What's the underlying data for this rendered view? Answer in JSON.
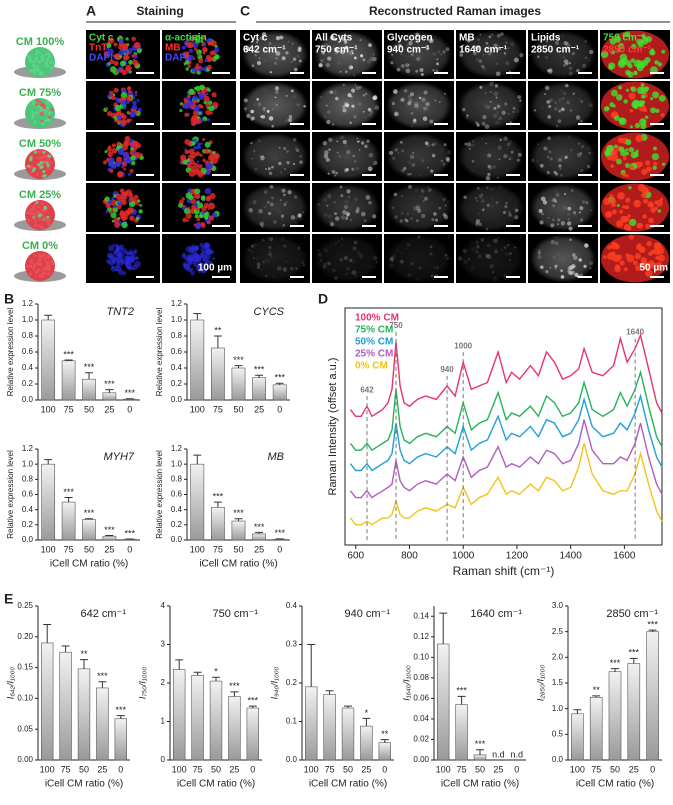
{
  "figure": {
    "panel_a": {
      "label": "A",
      "title": "Staining",
      "channels": [
        [
          "Cyt c",
          "TnT",
          "DAPI"
        ],
        [
          "α-actinin",
          "MB",
          "DAPI"
        ]
      ],
      "channel_colors": [
        "#3cdc3c",
        "#ff3030",
        "#4a4aff"
      ],
      "scale_bar": "100 µm"
    },
    "panel_c": {
      "label": "C",
      "title": "Reconstructed Raman images",
      "columns": [
        {
          "name": "Cyt c",
          "band": "642 cm⁻¹"
        },
        {
          "name": "All Cyts",
          "band": "750 cm⁻¹"
        },
        {
          "name": "Glycogen",
          "band": "940 cm⁻¹"
        },
        {
          "name": "MB",
          "band": "1640 cm⁻¹"
        },
        {
          "name": "Lipids",
          "band": "2850 cm⁻¹"
        },
        {
          "name": "750 cm⁻¹",
          "band": "2850 cm⁻¹"
        }
      ],
      "scale_bar": "50 µm"
    },
    "rows": [
      "CM 100%",
      "CM 75%",
      "CM 50%",
      "CM 25%",
      "CM 0%"
    ]
  },
  "chart_data": [
    {
      "type": "bar",
      "panel": "B",
      "title": "TNT2",
      "ylabel": "Relative expression level",
      "categories": [
        "100",
        "75",
        "50",
        "25",
        "0"
      ],
      "values": [
        1.0,
        0.49,
        0.26,
        0.09,
        0.01
      ],
      "errors": [
        0.06,
        0.01,
        0.08,
        0.04,
        0.005
      ],
      "significance": [
        null,
        "***",
        "***",
        "***",
        "***"
      ],
      "color": "#9a9a9a",
      "ylim": [
        0,
        1.2
      ],
      "yticks": [
        {
          "value": 0,
          "label": "0.0"
        },
        {
          "value": 0.2,
          "label": "0.2"
        },
        {
          "value": 0.4,
          "label": "0.4"
        },
        {
          "value": 0.6,
          "label": "0.6"
        },
        {
          "value": 0.8,
          "label": "0.8"
        },
        {
          "value": 1.0,
          "label": "1.0"
        },
        {
          "value": 1.2,
          "label": "1.2"
        }
      ]
    },
    {
      "type": "bar",
      "title": "CYCS",
      "ylabel": "Relative expression level",
      "categories": [
        "100",
        "75",
        "50",
        "25",
        "0"
      ],
      "values": [
        1.0,
        0.65,
        0.4,
        0.28,
        0.19
      ],
      "errors": [
        0.08,
        0.15,
        0.03,
        0.03,
        0.02
      ],
      "significance": [
        null,
        "**",
        "***",
        "***",
        "***"
      ],
      "color": "#9a9a9a",
      "ylim": [
        0,
        1.2
      ],
      "yticks": [
        {
          "value": 0,
          "label": "0.0"
        },
        {
          "value": 0.2,
          "label": "0.2"
        },
        {
          "value": 0.4,
          "label": "0.4"
        },
        {
          "value": 0.6,
          "label": "0.6"
        },
        {
          "value": 0.8,
          "label": "0.8"
        },
        {
          "value": 1.0,
          "label": "1.0"
        },
        {
          "value": 1.2,
          "label": "1.2"
        }
      ]
    },
    {
      "type": "bar",
      "title": "MYH7",
      "ylabel": "Relative expression level",
      "xlabel": "iCell CM ratio (%)",
      "categories": [
        "100",
        "75",
        "50",
        "25",
        "0"
      ],
      "values": [
        1.0,
        0.5,
        0.27,
        0.05,
        0.01
      ],
      "errors": [
        0.06,
        0.06,
        0.01,
        0.01,
        0.003
      ],
      "significance": [
        null,
        "***",
        "***",
        "***",
        "***"
      ],
      "color": "#9a9a9a",
      "ylim": [
        0,
        1.2
      ],
      "yticks": [
        {
          "value": 0,
          "label": "0.0"
        },
        {
          "value": 0.2,
          "label": "0.2"
        },
        {
          "value": 0.4,
          "label": "0.4"
        },
        {
          "value": 0.6,
          "label": "0.6"
        },
        {
          "value": 0.8,
          "label": "0.8"
        },
        {
          "value": 1.0,
          "label": "1.0"
        },
        {
          "value": 1.2,
          "label": "1.2"
        }
      ]
    },
    {
      "type": "bar",
      "title": "MB",
      "ylabel": "Relative expression level",
      "xlabel": "iCell CM ratio (%)",
      "categories": [
        "100",
        "75",
        "50",
        "25",
        "0"
      ],
      "values": [
        1.0,
        0.43,
        0.25,
        0.08,
        0.01
      ],
      "errors": [
        0.12,
        0.07,
        0.03,
        0.02,
        0.005
      ],
      "significance": [
        null,
        "***",
        "***",
        "***",
        "***"
      ],
      "color": "#9a9a9a",
      "ylim": [
        0,
        1.2
      ],
      "yticks": [
        {
          "value": 0,
          "label": "0.0"
        },
        {
          "value": 0.2,
          "label": "0.2"
        },
        {
          "value": 0.4,
          "label": "0.4"
        },
        {
          "value": 0.6,
          "label": "0.6"
        },
        {
          "value": 0.8,
          "label": "0.8"
        },
        {
          "value": 1.0,
          "label": "1.0"
        },
        {
          "value": 1.2,
          "label": "1.2"
        }
      ]
    },
    {
      "type": "line",
      "panel": "D",
      "ylabel": "Raman Intensity (offset a.u.)",
      "xlabel": "Raman shift (cm⁻¹)",
      "xlim": [
        560,
        1740
      ],
      "xticks": [
        600,
        800,
        1000,
        1200,
        1400,
        1600
      ],
      "ylim": [
        1.2,
        8.2
      ],
      "annotations": [
        642,
        750,
        940,
        1000,
        1640
      ],
      "x": [
        580,
        600,
        620,
        642,
        660,
        680,
        700,
        720,
        735,
        750,
        765,
        780,
        800,
        830,
        860,
        900,
        940,
        970,
        1000,
        1030,
        1060,
        1090,
        1130,
        1160,
        1180,
        1210,
        1250,
        1280,
        1310,
        1340,
        1370,
        1400,
        1430,
        1450,
        1480,
        1520,
        1560,
        1585,
        1610,
        1640,
        1660,
        1690,
        1720,
        1740
      ],
      "series": [
        {
          "name": "100% CM",
          "color": "#e8336b",
          "values": [
            5.2,
            5.0,
            5.0,
            5.3,
            5.0,
            5.1,
            5.2,
            5.4,
            5.8,
            7.2,
            5.9,
            5.4,
            5.3,
            5.5,
            5.6,
            5.5,
            5.9,
            5.6,
            6.6,
            5.8,
            5.9,
            6.0,
            6.9,
            6.0,
            6.3,
            6.1,
            6.5,
            6.2,
            6.9,
            6.6,
            6.1,
            6.2,
            6.4,
            7.0,
            6.3,
            6.2,
            6.5,
            7.3,
            6.6,
            7.0,
            7.4,
            6.4,
            5.4,
            5.1
          ]
        },
        {
          "name": "75% CM",
          "color": "#23b35a",
          "values": [
            4.2,
            4.0,
            4.0,
            4.2,
            4.0,
            4.1,
            4.2,
            4.3,
            4.6,
            5.8,
            4.7,
            4.3,
            4.2,
            4.4,
            4.5,
            4.4,
            4.7,
            4.5,
            5.4,
            4.6,
            4.8,
            4.9,
            5.7,
            4.9,
            5.1,
            5.0,
            5.3,
            5.0,
            5.6,
            5.4,
            5.0,
            5.1,
            5.4,
            6.0,
            5.2,
            5.0,
            5.2,
            5.7,
            5.3,
            5.8,
            6.3,
            5.3,
            4.4,
            4.1
          ]
        },
        {
          "name": "50% CM",
          "color": "#1e9fd8",
          "values": [
            3.6,
            3.4,
            3.4,
            3.6,
            3.4,
            3.5,
            3.6,
            3.7,
            3.9,
            4.8,
            4.0,
            3.7,
            3.6,
            3.8,
            3.9,
            3.8,
            4.1,
            3.9,
            4.7,
            4.0,
            4.2,
            4.3,
            5.0,
            4.3,
            4.5,
            4.4,
            4.7,
            4.4,
            4.9,
            4.8,
            4.4,
            4.5,
            4.9,
            5.5,
            4.7,
            4.4,
            4.5,
            4.8,
            4.6,
            5.1,
            5.6,
            4.6,
            3.8,
            3.5
          ]
        },
        {
          "name": "25% CM",
          "color": "#b05cc0",
          "values": [
            2.8,
            2.6,
            2.6,
            2.8,
            2.6,
            2.7,
            2.8,
            2.9,
            3.0,
            3.7,
            3.1,
            2.9,
            2.8,
            3.0,
            3.1,
            3.0,
            3.3,
            3.1,
            3.8,
            3.2,
            3.4,
            3.5,
            4.1,
            3.5,
            3.6,
            3.5,
            3.8,
            3.6,
            4.0,
            3.9,
            3.6,
            3.7,
            4.2,
            4.9,
            4.0,
            3.6,
            3.6,
            3.8,
            3.7,
            4.2,
            4.8,
            3.8,
            3.0,
            2.7
          ]
        },
        {
          "name": "0% CM",
          "color": "#f0c419",
          "values": [
            2.0,
            1.8,
            1.8,
            1.9,
            1.8,
            1.9,
            2.0,
            2.0,
            2.1,
            2.5,
            2.1,
            2.0,
            2.0,
            2.2,
            2.3,
            2.2,
            2.4,
            2.3,
            2.9,
            2.4,
            2.6,
            2.7,
            3.2,
            2.7,
            2.8,
            2.7,
            3.0,
            2.8,
            3.2,
            3.1,
            2.8,
            2.9,
            3.5,
            4.2,
            3.3,
            2.8,
            2.7,
            2.8,
            2.8,
            3.3,
            3.9,
            3.0,
            2.2,
            1.9
          ]
        }
      ]
    },
    {
      "type": "bar",
      "panel": "E",
      "title": "642 cm⁻¹",
      "ylabel": "I₆₄₂/I₁₀₀₀",
      "xlabel": "iCell CM ratio (%)",
      "categories": [
        "100",
        "75",
        "50",
        "25",
        "0"
      ],
      "values": [
        0.19,
        0.175,
        0.148,
        0.117,
        0.067
      ],
      "errors": [
        0.03,
        0.01,
        0.015,
        0.01,
        0.005
      ],
      "significance": [
        null,
        null,
        "**",
        "***",
        "***"
      ],
      "color": "#9a9a9a",
      "ylim": [
        0,
        0.25
      ],
      "yticks": [
        {
          "value": 0,
          "label": "0.00"
        },
        {
          "value": 0.05,
          "label": "0.05"
        },
        {
          "value": 0.1,
          "label": "0.10"
        },
        {
          "value": 0.15,
          "label": "0.15"
        },
        {
          "value": 0.2,
          "label": "0.20"
        },
        {
          "value": 0.25,
          "label": "0.25"
        }
      ]
    },
    {
      "type": "bar",
      "title": "750 cm⁻¹",
      "ylabel": "I₇₅₀/I₁₀₀₀",
      "xlabel": "iCell CM ratio (%)",
      "categories": [
        "100",
        "75",
        "50",
        "25",
        "0"
      ],
      "values": [
        2.35,
        2.2,
        2.05,
        1.65,
        1.35
      ],
      "errors": [
        0.25,
        0.08,
        0.1,
        0.12,
        0.05
      ],
      "significance": [
        null,
        null,
        "*",
        "***",
        "***"
      ],
      "color": "#9a9a9a",
      "ylim": [
        0,
        4
      ],
      "yticks": [
        0,
        1,
        2,
        3,
        4
      ]
    },
    {
      "type": "bar",
      "title": "940 cm⁻¹",
      "ylabel": "I₉₄₀/I₁₀₀₀",
      "xlabel": "iCell CM ratio (%)",
      "categories": [
        "100",
        "75",
        "50",
        "25",
        "0"
      ],
      "values": [
        0.19,
        0.17,
        0.135,
        0.088,
        0.045
      ],
      "errors": [
        0.11,
        0.01,
        0.005,
        0.02,
        0.008
      ],
      "significance": [
        null,
        null,
        null,
        "*",
        "**"
      ],
      "color": "#9a9a9a",
      "ylim": [
        0,
        0.4
      ],
      "yticks": [
        {
          "value": 0,
          "label": "0.0"
        },
        {
          "value": 0.1,
          "label": "0.1"
        },
        {
          "value": 0.2,
          "label": "0.2"
        },
        {
          "value": 0.3,
          "label": "0.3"
        },
        {
          "value": 0.4,
          "label": "0.4"
        }
      ]
    },
    {
      "type": "bar",
      "title": "1640 cm⁻¹",
      "ylabel": "I₁₆₄₀/I₁₀₀₀",
      "xlabel": "iCell CM ratio (%)",
      "categories": [
        "100",
        "75",
        "50",
        "25",
        "0"
      ],
      "values": [
        0.113,
        0.054,
        0.005,
        null,
        null
      ],
      "errors": [
        0.03,
        0.008,
        0.005,
        null,
        null
      ],
      "significance": [
        null,
        "***",
        "***",
        "n.d",
        "n.d"
      ],
      "color": "#9a9a9a",
      "ylim": [
        0,
        0.15
      ],
      "yticks": [
        {
          "value": 0,
          "label": "0.00"
        },
        {
          "value": 0.02,
          "label": "0.02"
        },
        {
          "value": 0.04,
          "label": "0.04"
        },
        {
          "value": 0.06,
          "label": "0.06"
        },
        {
          "value": 0.08,
          "label": "0.08"
        },
        {
          "value": 0.1,
          "label": "0.10"
        },
        {
          "value": 0.12,
          "label": "0.12"
        },
        {
          "value": 0.14,
          "label": "0.14"
        }
      ]
    },
    {
      "type": "bar",
      "title": "2850 cm⁻¹",
      "ylabel": "I₂₈₅₀/I₁₀₀₀",
      "xlabel": "iCell CM ratio (%)",
      "categories": [
        "100",
        "75",
        "50",
        "25",
        "0"
      ],
      "values": [
        0.9,
        1.22,
        1.72,
        1.88,
        2.5
      ],
      "errors": [
        0.08,
        0.03,
        0.06,
        0.1,
        0.03
      ],
      "significance": [
        null,
        "**",
        "***",
        "***",
        "***"
      ],
      "color": "#9a9a9a",
      "ylim": [
        0,
        3
      ],
      "yticks": [
        {
          "value": 0,
          "label": "0.0"
        },
        {
          "value": 0.5,
          "label": "0.5"
        },
        {
          "value": 1,
          "label": "1.0"
        },
        {
          "value": 1.5,
          "label": "1.5"
        },
        {
          "value": 2,
          "label": "2.0"
        },
        {
          "value": 2.5,
          "label": "2.5"
        },
        {
          "value": 3,
          "label": "3.0"
        }
      ]
    }
  ]
}
